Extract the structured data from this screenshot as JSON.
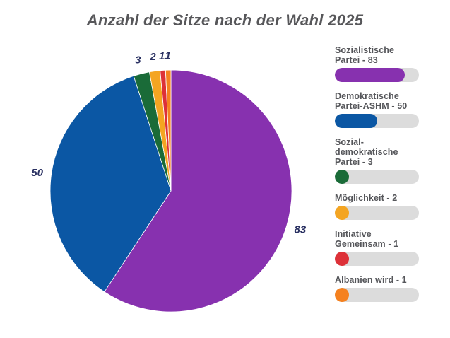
{
  "chart_data": {
    "type": "pie",
    "title": "Anzahl der Sitze nach der Wahl 2025",
    "title_color": "#57575a",
    "total": 140,
    "start_angle_deg": 0,
    "direction": "clockwise",
    "legend_position": "right",
    "categories": [
      "Sozialistische Partei",
      "Demokratische Partei-ASHM",
      "Sozialdemokratische Partei",
      "Möglichkeit",
      "Initiative Gemeinsam",
      "Albanien wird"
    ],
    "values": [
      83,
      50,
      3,
      2,
      1,
      1
    ],
    "colors": [
      "#8731af",
      "#0b57a4",
      "#1a6b38",
      "#f4a522",
      "#dd3138",
      "#f5811f"
    ],
    "slice_labels": [
      "83",
      "50",
      "3",
      "2",
      "1",
      "1"
    ],
    "slice_label_color": "#2a3162",
    "slice_stroke": "#ffffff"
  },
  "legend": {
    "track_color": "#dcdcdc",
    "text_color": "#55565a",
    "items": [
      {
        "label": "Sozialistische\nPartei - 83",
        "value": 83,
        "color": "#8731af",
        "fill_percent": 83
      },
      {
        "label": "Demokratische\nPartei-ASHM - 50",
        "value": 50,
        "color": "#0b57a4",
        "fill_percent": 50
      },
      {
        "label": "Sozial-\ndemokratische\nPartei - 3",
        "value": 3,
        "color": "#1a6b38",
        "fill_percent": 17
      },
      {
        "label": "Möglichkeit - 2",
        "value": 2,
        "color": "#f4a522",
        "fill_percent": 17
      },
      {
        "label": "Initiative\nGemeinsam - 1",
        "value": 1,
        "color": "#dd3138",
        "fill_percent": 17
      },
      {
        "label": "Albanien wird - 1",
        "value": 1,
        "color": "#f5811f",
        "fill_percent": 17
      }
    ]
  }
}
